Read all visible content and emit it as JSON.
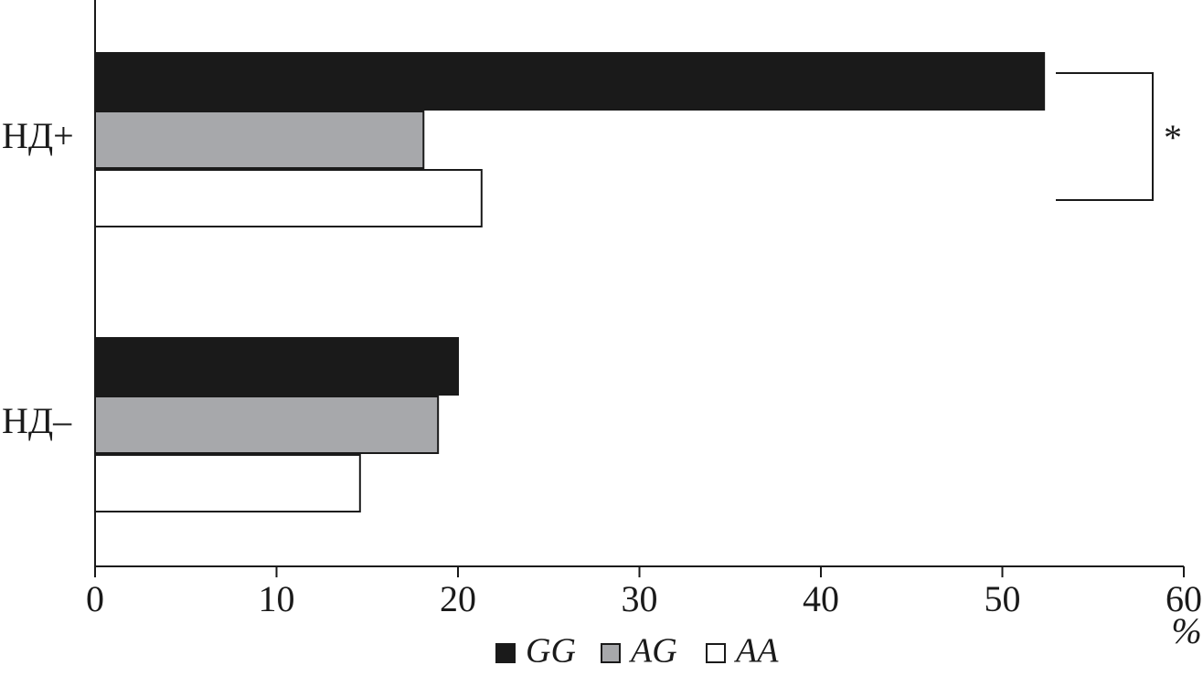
{
  "chart_data": {
    "type": "hbar",
    "categories": [
      "НД+",
      "НД–"
    ],
    "series": [
      {
        "name": "GG",
        "color": "#1a1a1a",
        "values": [
          52.3,
          20.0
        ]
      },
      {
        "name": "AG",
        "color": "#a7a8ab",
        "values": [
          18.1,
          18.9
        ]
      },
      {
        "name": "AA",
        "color": "#ffffff",
        "values": [
          21.3,
          14.6
        ]
      }
    ],
    "xlim": [
      0,
      60
    ],
    "xticks": [
      0,
      10,
      20,
      30,
      40,
      50,
      60
    ],
    "xlabel": "%",
    "annotation": "*",
    "legend": "bottom"
  }
}
